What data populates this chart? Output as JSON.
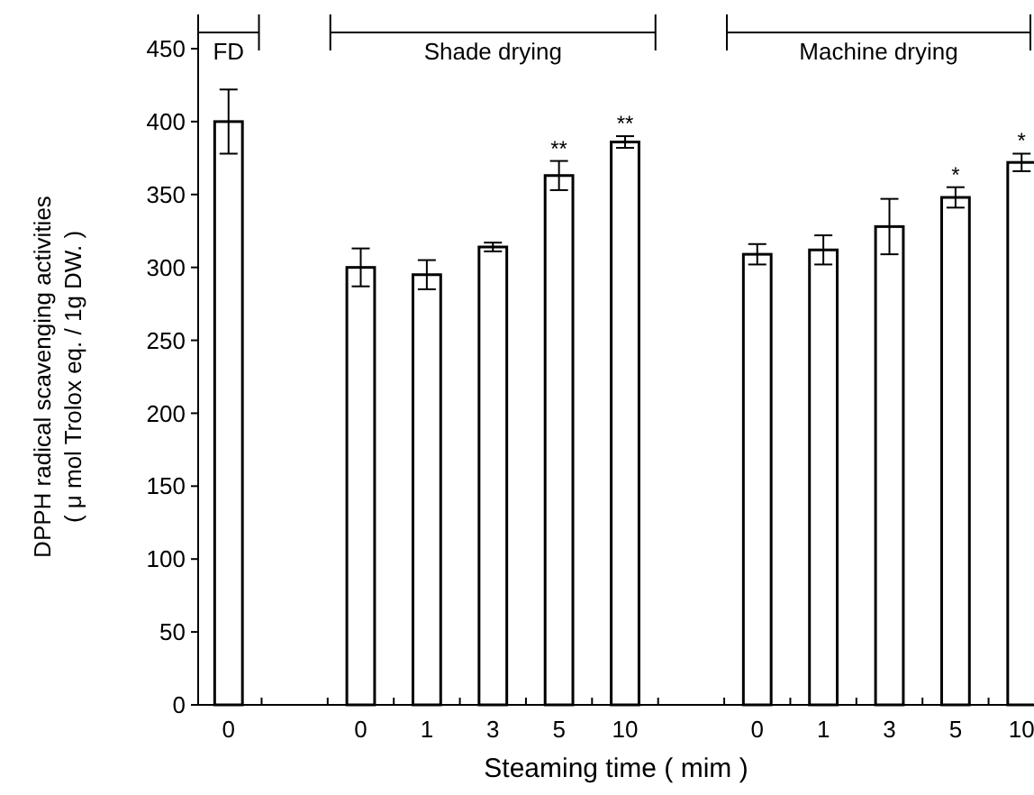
{
  "chart_data": {
    "type": "bar",
    "xlabel": "Steaming time ( mim )",
    "ylabel": "DPPH radical scavenging activities\n( μ mol  Trolox eq. / 1g DW. )",
    "categories": [
      "0",
      null,
      "0",
      "1",
      "3",
      "5",
      "10",
      null,
      "0",
      "1",
      "3",
      "5",
      "10"
    ],
    "values": [
      400,
      null,
      300,
      295,
      314,
      363,
      386,
      null,
      309,
      312,
      328,
      348,
      372
    ],
    "errors": [
      22,
      null,
      13,
      10,
      3,
      10,
      4,
      null,
      7,
      10,
      19,
      7,
      6
    ],
    "color": "#ffffff",
    "ylim": [
      0,
      450
    ],
    "yticks": [
      0,
      50,
      100,
      150,
      200,
      250,
      300,
      350,
      400,
      450
    ],
    "value_labels": [
      null,
      null,
      null,
      null,
      null,
      "**",
      "**",
      null,
      null,
      null,
      null,
      "*",
      "*"
    ],
    "annotations": [
      "FD",
      "Shade drying",
      "Machine drying"
    ],
    "grid": false
  }
}
